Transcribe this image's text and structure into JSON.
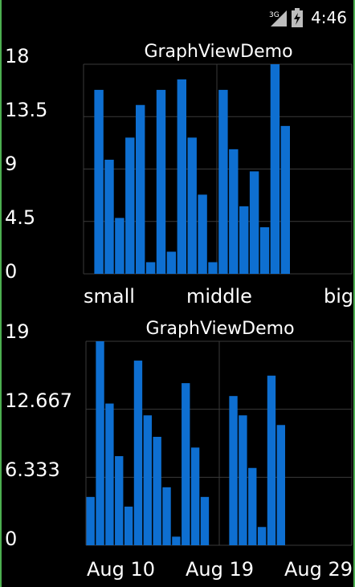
{
  "status_bar": {
    "network": "3G",
    "time": "4:46"
  },
  "chart_data": [
    {
      "type": "bar",
      "title": "GraphViewDemo",
      "ylim": [
        0,
        18
      ],
      "y_ticks": [
        "18",
        "13.5",
        "9",
        "4.5",
        "0"
      ],
      "x_ticks": [
        "small",
        "middle",
        "big"
      ],
      "bar_color": "#0e6fd1",
      "grid": true,
      "values": [
        0,
        15.8,
        9.8,
        4.8,
        11.7,
        14.5,
        1.0,
        15.8,
        1.9,
        16.7,
        11.7,
        6.8,
        1.0,
        15.8,
        10.7,
        5.8,
        8.8,
        4.0,
        18,
        12.7
      ]
    },
    {
      "type": "bar",
      "title": "GraphViewDemo",
      "ylim": [
        0,
        19
      ],
      "y_ticks": [
        "19",
        "12.667",
        "6.333",
        "0"
      ],
      "x_ticks": [
        "Aug 10",
        "Aug 19",
        "Aug 29"
      ],
      "bar_color": "#0e6fd1",
      "grid": true,
      "values": [
        4.5,
        19,
        13.2,
        8.3,
        3.6,
        17.2,
        12.1,
        10.1,
        5.4,
        0.8,
        15.1,
        9.1,
        4.5,
        0,
        0,
        13.9,
        12.1,
        7.2,
        1.7,
        15.8,
        11.2
      ]
    }
  ]
}
